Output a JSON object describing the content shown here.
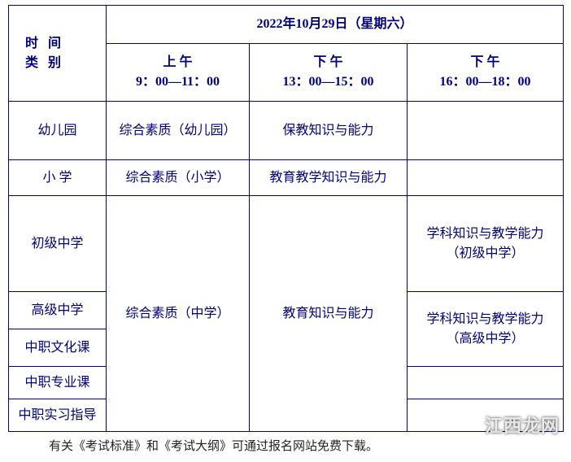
{
  "colors": {
    "border": "#000080",
    "text": "#000080",
    "background": "#ffffff"
  },
  "header": {
    "left_line1": "时 间",
    "left_line2": "类 别",
    "date": "2022年10月29日（星期六）",
    "periods": {
      "am_label": "上 午",
      "am_time": "9：00—11：00",
      "pm1_label": "下 午",
      "pm1_time": "13：00—15：00",
      "pm2_label": "下 午",
      "pm2_time": "16：00—18：00"
    }
  },
  "rows": {
    "kindergarten": {
      "label": "幼儿园",
      "am": "综合素质（幼儿园）",
      "pm1": "保教知识与能力",
      "pm2": ""
    },
    "primary": {
      "label": "小 学",
      "am": "综合素质（小学）",
      "pm1": "教育教学知识与能力",
      "pm2": ""
    },
    "junior": {
      "label": "初级中学",
      "pm2_line1": "学科知识与教学能力",
      "pm2_line2": "（初级中学）"
    },
    "middle_shared": {
      "am": "综合素质（中学）",
      "pm1": "教育知识与能力"
    },
    "senior": {
      "label": "高级中学",
      "pm2_line1": "学科知识与教学能力",
      "pm2_line2": "（高级中学）"
    },
    "voc_culture": {
      "label": "中职文化课"
    },
    "voc_major": {
      "label": "中职专业课",
      "pm2": ""
    },
    "voc_intern": {
      "label": "中职实习指导",
      "pm2": ""
    }
  },
  "footer": "有关《考试标准》和《考试大纲》可通过报名网站免费下载。",
  "watermark": "江西龙网"
}
